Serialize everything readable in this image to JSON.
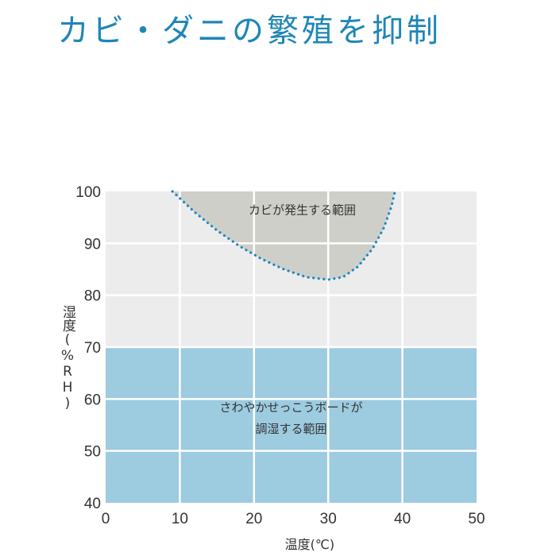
{
  "title": "カビ・ダニの繁殖を抑制",
  "chart_data": {
    "type": "area",
    "xlabel": "温度(℃)",
    "ylabel": "湿度(%RH)",
    "xlim": [
      0,
      50
    ],
    "ylim": [
      40,
      100
    ],
    "x_ticks": [
      0,
      10,
      20,
      30,
      40,
      50
    ],
    "y_ticks": [
      40,
      50,
      60,
      70,
      80,
      90,
      100
    ],
    "grid": true,
    "regions": [
      {
        "label_lines": [
          "カビが発生する範囲"
        ],
        "color": "#cfcfc9",
        "boundary_color": "#1e88c2",
        "boundary_style": "dotted",
        "boundary": [
          {
            "x": 9,
            "y": 100
          },
          {
            "x": 12,
            "y": 96
          },
          {
            "x": 15,
            "y": 92.5
          },
          {
            "x": 18,
            "y": 89.5
          },
          {
            "x": 21,
            "y": 87
          },
          {
            "x": 24,
            "y": 85
          },
          {
            "x": 27,
            "y": 83.5
          },
          {
            "x": 30,
            "y": 83
          },
          {
            "x": 32,
            "y": 83.5
          },
          {
            "x": 34,
            "y": 85.5
          },
          {
            "x": 36,
            "y": 89
          },
          {
            "x": 37.5,
            "y": 93
          },
          {
            "x": 38.5,
            "y": 97
          },
          {
            "x": 39,
            "y": 100
          }
        ]
      },
      {
        "label_lines": [
          "さわやかせっこうボードが",
          "調湿する範囲"
        ],
        "color": "#9dcbe0",
        "y_range": [
          40,
          70
        ],
        "x_range": [
          0,
          50
        ]
      }
    ],
    "background_color": "#ececec",
    "grid_color": "#ffffff"
  }
}
